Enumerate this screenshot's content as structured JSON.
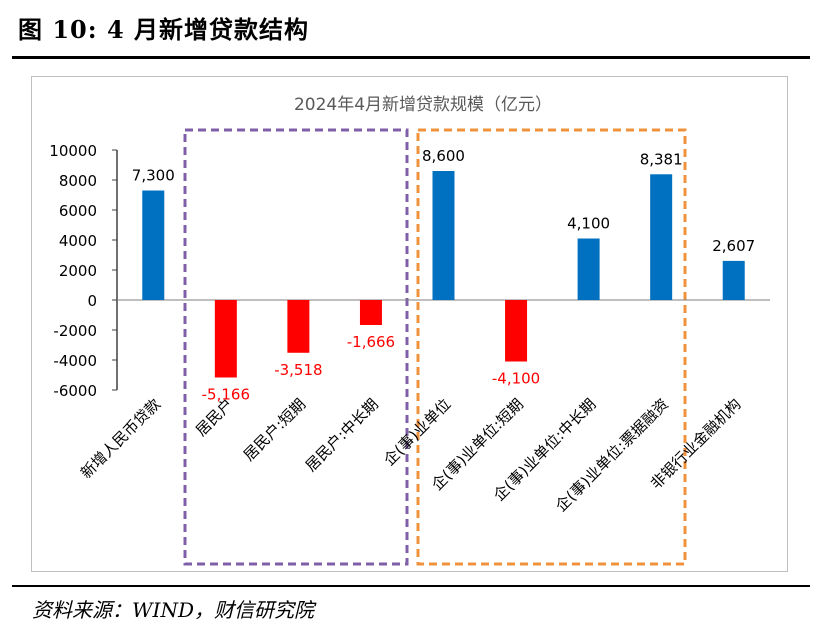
{
  "figure": {
    "title": "图 10:  4 月新增贷款结构",
    "source": "资料来源：WIND，财信研究院"
  },
  "chart_data": {
    "type": "bar",
    "title": "2024年4月新增贷款规模（亿元）",
    "categories": [
      "新增人民币贷款",
      "居民户",
      "居民户:短期",
      "居民户:中长期",
      "企(事)业单位",
      "企(事)业单位:短期",
      "企(事)业单位:中长期",
      "企(事)业单位:票据融资",
      "非银行业金融机构"
    ],
    "values": [
      7300,
      -5166,
      -3518,
      -1666,
      8600,
      -4100,
      4100,
      8381,
      2607
    ],
    "data_labels": [
      "7,300",
      "-5,166",
      "-3,518",
      "-1,666",
      "8,600",
      "-4,100",
      "4,100",
      "8,381",
      "2,607"
    ],
    "yticks": [
      "10000",
      "8000",
      "6000",
      "4000",
      "2000",
      "0",
      "-2000",
      "-4000",
      "-6000"
    ],
    "ylim": [
      -6000,
      10000
    ],
    "colors": {
      "positive": "#0070C0",
      "negative": "#FF0000",
      "group_household": "#7F5FA8",
      "group_enterprise": "#F0913C"
    },
    "grid": false,
    "legend": "none"
  }
}
